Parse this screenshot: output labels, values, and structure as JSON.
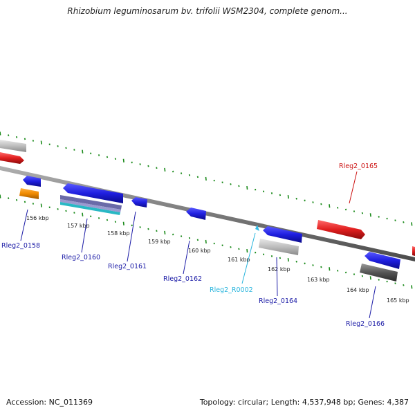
{
  "title": "Rhizobium leguminosarum bv. trifolii WSM2304, complete genom...",
  "footer": {
    "accession": "Accession: NC_011369",
    "summary": "Topology: circular; Length: 4,537,948 bp; Genes: 4,387"
  },
  "colors": {
    "backbone": "#777777",
    "tick": "#1a8a1a",
    "blue_gene": "#1f1fe0",
    "red_gene": "#e01e1e",
    "gray_gene": "#b8b8b8",
    "dark_gray_gene": "#5a5a5a",
    "orange_gene": "#f08a00",
    "rna": "#33bde6",
    "label_blue": "#1a1aa6",
    "label_red": "#cc1111",
    "label_cyan": "#29b5dd"
  },
  "kbp_labels": [
    "156 kbp",
    "157 kbp",
    "158 kbp",
    "159 kbp",
    "160 kbp",
    "161 kbp",
    "162 kbp",
    "163 kbp",
    "164 kbp",
    "165 kbp"
  ],
  "gene_labels": [
    "Rleg2_0158",
    "Rleg2_0160",
    "Rleg2_0161",
    "Rleg2_0162",
    "Rleg2_R0002",
    "Rleg2_0164",
    "Rleg2_0165",
    "Rleg2_0166"
  ]
}
